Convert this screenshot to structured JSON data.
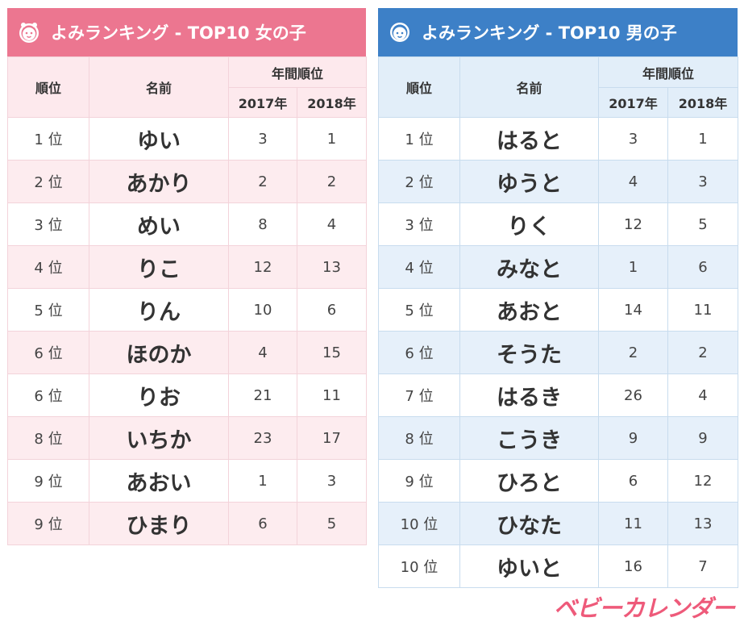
{
  "girls": {
    "title": "よみランキング - TOP10 女の子",
    "header": {
      "rank": "順位",
      "name": "名前",
      "annual": "年間順位",
      "year1": "2017年",
      "year2": "2018年"
    },
    "rows": [
      {
        "rank": "1 位",
        "name": "ゆい",
        "y2017": "3",
        "y2018": "1"
      },
      {
        "rank": "2 位",
        "name": "あかり",
        "y2017": "2",
        "y2018": "2"
      },
      {
        "rank": "3 位",
        "name": "めい",
        "y2017": "8",
        "y2018": "4"
      },
      {
        "rank": "4 位",
        "name": "りこ",
        "y2017": "12",
        "y2018": "13"
      },
      {
        "rank": "5 位",
        "name": "りん",
        "y2017": "10",
        "y2018": "6"
      },
      {
        "rank": "6 位",
        "name": "ほのか",
        "y2017": "4",
        "y2018": "15"
      },
      {
        "rank": "6 位",
        "name": "りお",
        "y2017": "21",
        "y2018": "11"
      },
      {
        "rank": "8 位",
        "name": "いちか",
        "y2017": "23",
        "y2018": "17"
      },
      {
        "rank": "9 位",
        "name": "あおい",
        "y2017": "1",
        "y2018": "3"
      },
      {
        "rank": "9 位",
        "name": "ひまり",
        "y2017": "6",
        "y2018": "5"
      }
    ]
  },
  "boys": {
    "title": "よみランキング - TOP10 男の子",
    "header": {
      "rank": "順位",
      "name": "名前",
      "annual": "年間順位",
      "year1": "2017年",
      "year2": "2018年"
    },
    "rows": [
      {
        "rank": "1 位",
        "name": "はると",
        "y2017": "3",
        "y2018": "1"
      },
      {
        "rank": "2 位",
        "name": "ゆうと",
        "y2017": "4",
        "y2018": "3"
      },
      {
        "rank": "3 位",
        "name": "りく",
        "y2017": "12",
        "y2018": "5"
      },
      {
        "rank": "4 位",
        "name": "みなと",
        "y2017": "1",
        "y2018": "6"
      },
      {
        "rank": "5 位",
        "name": "あおと",
        "y2017": "14",
        "y2018": "11"
      },
      {
        "rank": "6 位",
        "name": "そうた",
        "y2017": "2",
        "y2018": "2"
      },
      {
        "rank": "7 位",
        "name": "はるき",
        "y2017": "26",
        "y2018": "4"
      },
      {
        "rank": "8 位",
        "name": "こうき",
        "y2017": "9",
        "y2018": "9"
      },
      {
        "rank": "9 位",
        "name": "ひろと",
        "y2017": "6",
        "y2018": "12"
      },
      {
        "rank": "10 位",
        "name": "ひなた",
        "y2017": "11",
        "y2018": "13"
      },
      {
        "rank": "10 位",
        "name": "ゆいと",
        "y2017": "16",
        "y2018": "7"
      }
    ]
  },
  "logo": {
    "text": "ベビーカレンダー"
  },
  "icons": {
    "girls": "girl-face-icon",
    "boys": "boy-face-icon"
  },
  "colors": {
    "girls_accent": "#ec7690",
    "boys_accent": "#3d80c7",
    "logo": "#ee5a7a"
  }
}
